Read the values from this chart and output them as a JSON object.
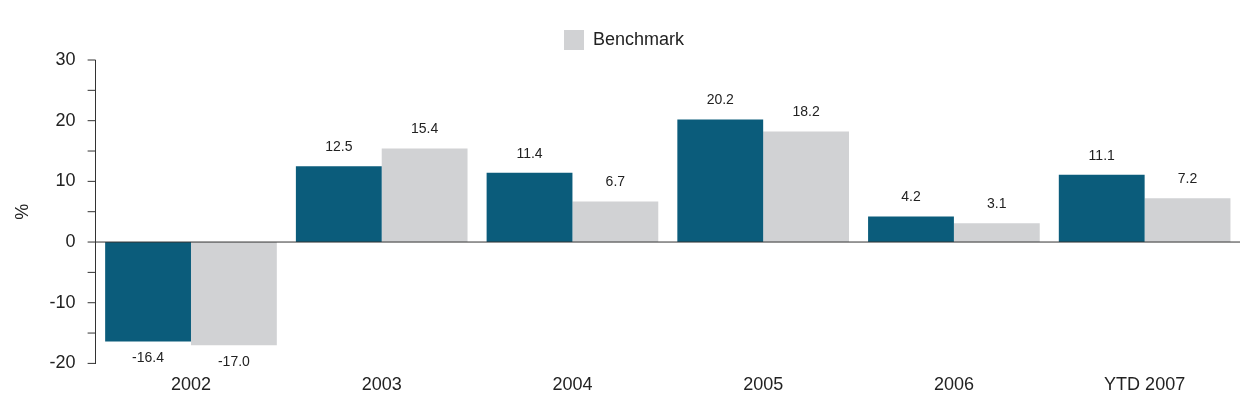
{
  "chart_data": {
    "type": "bar",
    "categories": [
      "2002",
      "2003",
      "2004",
      "2005",
      "2006",
      "YTD 2007"
    ],
    "ylabel": "%",
    "series": [
      {
        "color": "#0b5c7b",
        "values": [
          -16.4,
          12.5,
          11.4,
          20.2,
          4.2,
          11.1
        ],
        "value_labels": [
          "-16.4",
          "12.5",
          "11.4",
          "20.2",
          "4.2",
          "11.1"
        ]
      },
      {
        "name": "Benchmark",
        "color": "#d1d2d4",
        "values": [
          -17.0,
          15.4,
          6.7,
          18.2,
          3.1,
          7.2
        ],
        "value_labels": [
          "-17.0",
          "15.4",
          "6.7",
          "18.2",
          "3.1",
          "7.2"
        ]
      }
    ],
    "ylim": [
      -20,
      30
    ],
    "yticks": [
      -20,
      {
        "value": -15,
        "label": null
      },
      -10,
      {
        "value": -5,
        "label": null
      },
      0,
      {
        "value": 5,
        "label": null
      },
      10,
      {
        "value": 15,
        "label": null
      },
      20,
      {
        "value": 25,
        "label": null
      },
      30
    ],
    "legend": "top"
  }
}
